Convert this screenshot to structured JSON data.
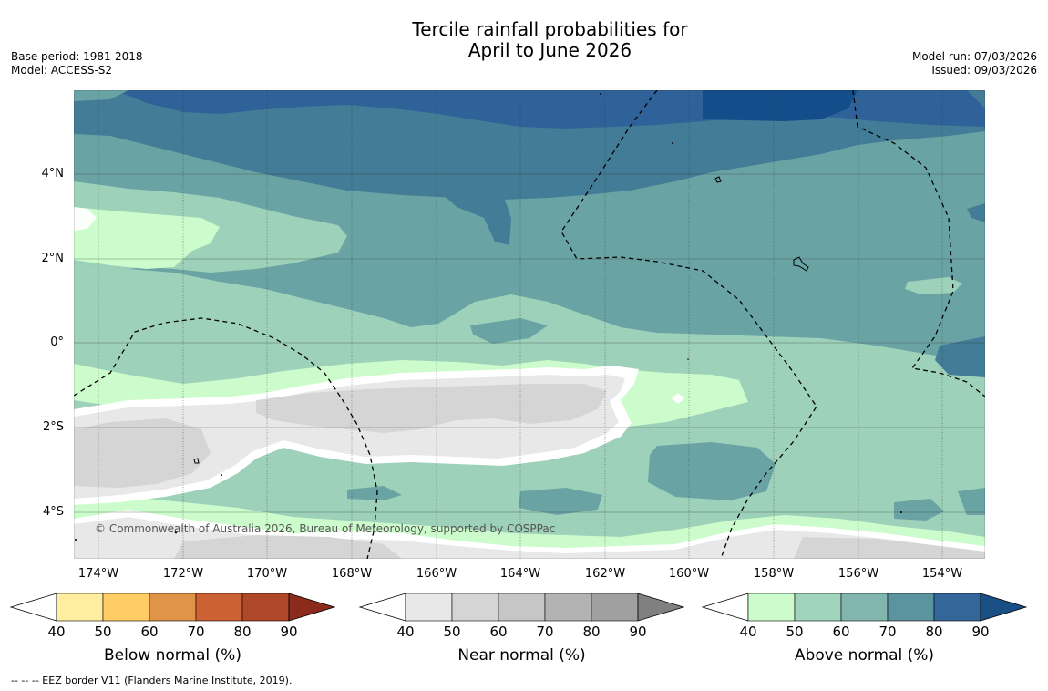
{
  "title": {
    "line1": "Tercile rainfall probabilities for",
    "line2": "April to June 2026"
  },
  "meta_left": {
    "base_period": "Base period: 1981-2018",
    "model": "Model: ACCESS-S2"
  },
  "meta_right": {
    "model_run": "Model run: 07/03/2026",
    "issued": "Issued: 09/03/2026"
  },
  "map": {
    "lat_labels": [
      "4°N",
      "2°N",
      "0°",
      "2°S",
      "4°S"
    ],
    "lon_labels": [
      "174°W",
      "172°W",
      "170°W",
      "168°W",
      "166°W",
      "164°W",
      "162°W",
      "160°W",
      "158°W",
      "156°W",
      "154°W"
    ],
    "copyright": "© Commonwealth of Australia 2026, Bureau of Meteorology, supported by COSPPac",
    "colors": {
      "above_50": "#9dd1b9",
      "above_60": "#6aa3a4",
      "above_70": "#427c96",
      "above_80": "#30629a",
      "above_90": "#134e8a",
      "above_40": "#ccfccb",
      "near_40": "#e8e8e8",
      "near_50": "#d5d5d5"
    }
  },
  "colorbars": [
    {
      "title": "Below normal (%)",
      "ticks": [
        "40",
        "50",
        "60",
        "70",
        "80",
        "90"
      ],
      "colors": [
        "#ffffff",
        "#ffeea0",
        "#ffcc66",
        "#e09448",
        "#cc6233",
        "#ae4828",
        "#8c2a1c"
      ]
    },
    {
      "title": "Near normal (%)",
      "ticks": [
        "40",
        "50",
        "60",
        "70",
        "80",
        "90"
      ],
      "colors": [
        "#ffffff",
        "#e8e8e8",
        "#d5d5d5",
        "#c6c6c6",
        "#b3b3b3",
        "#a0a0a0",
        "#808080"
      ]
    },
    {
      "title": "Above normal (%)",
      "ticks": [
        "40",
        "50",
        "60",
        "70",
        "80",
        "90"
      ],
      "colors": [
        "#ffffff",
        "#ccfccb",
        "#a0d5bb",
        "#81b6ae",
        "#5b939f",
        "#336699",
        "#1a4f86"
      ]
    }
  ],
  "footer": "--  --  -- EEZ border V11 (Flanders Marine Institute, 2019)."
}
